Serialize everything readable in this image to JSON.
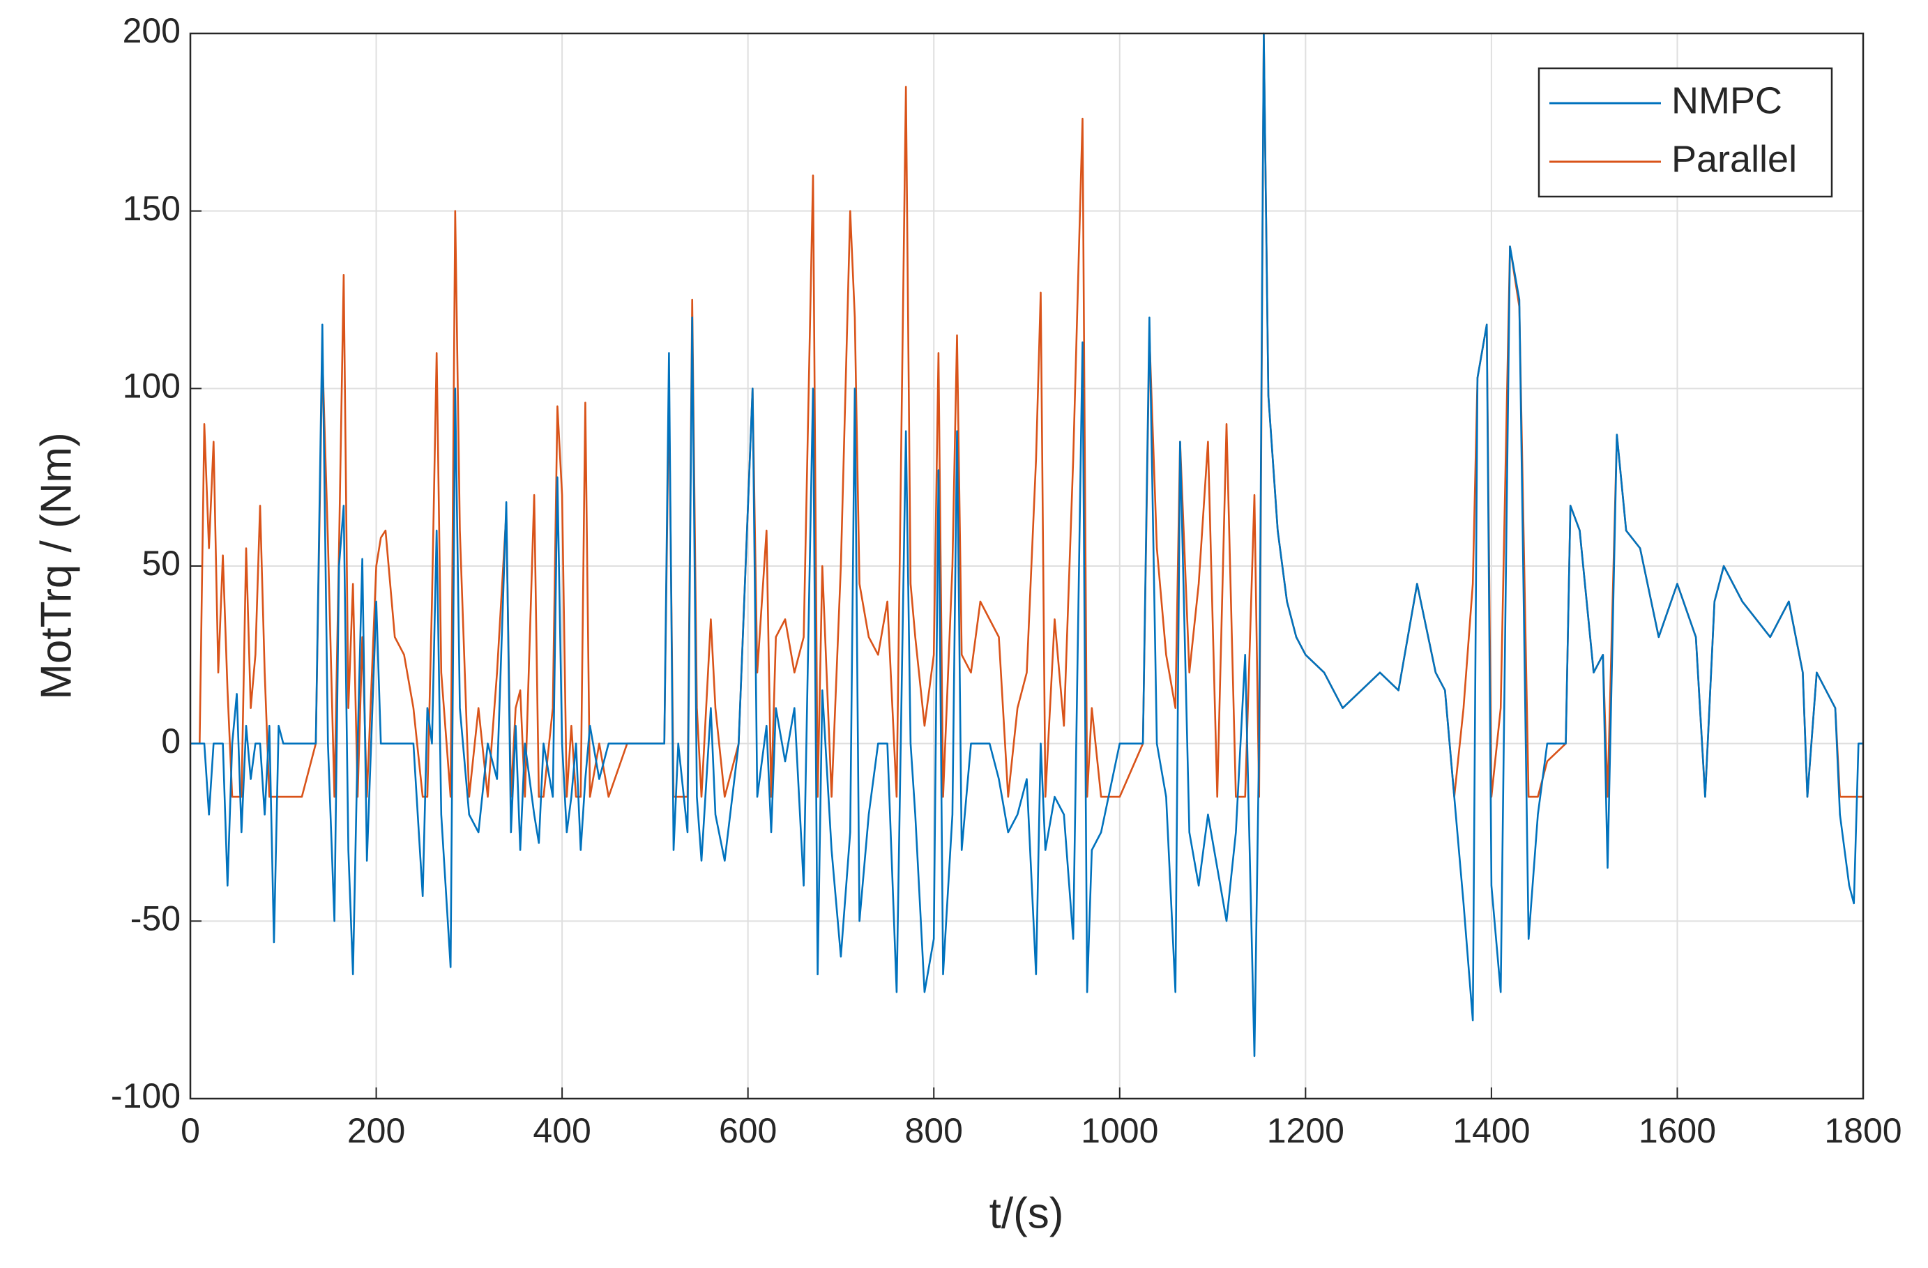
{
  "chart_data": {
    "type": "line",
    "xlabel": "t/(s)",
    "ylabel": "MotTrq / (Nm)",
    "x": [
      0,
      10,
      15,
      20,
      25,
      30,
      35,
      40,
      45,
      50,
      55,
      60,
      65,
      70,
      75,
      80,
      85,
      90,
      95,
      100,
      120,
      135,
      142,
      148,
      155,
      160,
      165,
      170,
      175,
      180,
      185,
      190,
      200,
      205,
      210,
      220,
      230,
      240,
      250,
      255,
      260,
      265,
      270,
      280,
      285,
      290,
      300,
      310,
      320,
      330,
      340,
      345,
      350,
      355,
      360,
      370,
      375,
      380,
      390,
      395,
      400,
      405,
      410,
      415,
      420,
      425,
      430,
      440,
      450,
      470,
      510,
      515,
      520,
      525,
      535,
      540,
      545,
      550,
      560,
      565,
      575,
      590,
      605,
      610,
      620,
      625,
      630,
      640,
      650,
      660,
      670,
      675,
      680,
      690,
      700,
      710,
      715,
      720,
      730,
      740,
      750,
      760,
      770,
      775,
      780,
      790,
      800,
      805,
      810,
      820,
      825,
      830,
      840,
      850,
      860,
      870,
      880,
      890,
      900,
      910,
      915,
      920,
      930,
      940,
      950,
      960,
      965,
      970,
      980,
      1000,
      1025,
      1032,
      1040,
      1050,
      1060,
      1065,
      1075,
      1085,
      1095,
      1105,
      1115,
      1125,
      1135,
      1145,
      1150,
      1155,
      1160,
      1170,
      1180,
      1190,
      1200,
      1220,
      1240,
      1260,
      1280,
      1300,
      1320,
      1340,
      1350,
      1360,
      1370,
      1380,
      1385,
      1395,
      1400,
      1410,
      1420,
      1430,
      1440,
      1450,
      1460,
      1480,
      1485,
      1495,
      1510,
      1520,
      1525,
      1535,
      1545,
      1560,
      1580,
      1600,
      1620,
      1630,
      1640,
      1650,
      1670,
      1700,
      1720,
      1735,
      1740,
      1750,
      1760,
      1770,
      1775,
      1785,
      1790,
      1795,
      1800
    ],
    "series": [
      {
        "name": "NMPC",
        "color": "#0072bd",
        "values": [
          0,
          0,
          0,
          -20,
          0,
          0,
          0,
          -40,
          0,
          14,
          -25,
          5,
          -10,
          0,
          0,
          -20,
          5,
          -56,
          5,
          0,
          0,
          0,
          118,
          0,
          -50,
          50,
          67,
          -30,
          -65,
          0,
          52,
          -33,
          40,
          0,
          0,
          0,
          0,
          0,
          -43,
          10,
          0,
          60,
          -20,
          -63,
          100,
          10,
          -20,
          -25,
          0,
          -10,
          68,
          -25,
          5,
          -30,
          0,
          -20,
          -28,
          0,
          -15,
          75,
          0,
          -25,
          -15,
          0,
          -30,
          -10,
          5,
          -10,
          0,
          0,
          0,
          110,
          -30,
          0,
          -25,
          120,
          -15,
          -33,
          10,
          -20,
          -33,
          0,
          100,
          -15,
          5,
          -25,
          10,
          -5,
          10,
          -40,
          100,
          -65,
          15,
          -30,
          -60,
          -25,
          100,
          -50,
          -20,
          0,
          0,
          -70,
          88,
          0,
          -20,
          -70,
          -55,
          77,
          -65,
          -20,
          88,
          -30,
          0,
          0,
          0,
          -10,
          -25,
          -20,
          -10,
          -65,
          0,
          -30,
          -15,
          -20,
          -55,
          113,
          -70,
          -30,
          -25,
          0,
          0,
          120,
          0,
          -15,
          -70,
          85,
          -25,
          -40,
          -20,
          -35,
          -50,
          -25,
          25,
          -88,
          0,
          200,
          98,
          60,
          40,
          30,
          25,
          20,
          10,
          15,
          20,
          15,
          45,
          20,
          15,
          -15,
          -45,
          -78,
          103,
          118,
          -40,
          -70,
          140,
          125,
          -55,
          -20,
          0,
          0,
          67,
          60,
          20,
          25,
          -35,
          87,
          60,
          55,
          30,
          45,
          30,
          -15,
          40,
          50,
          40,
          30,
          40,
          20,
          -15,
          20,
          15,
          10,
          -20,
          -40,
          -45,
          0,
          0
        ]
      },
      {
        "name": "Parallel",
        "color": "#d95319",
        "values": [
          0,
          0,
          90,
          55,
          85,
          20,
          53,
          15,
          -15,
          -15,
          -15,
          55,
          10,
          25,
          67,
          20,
          -15,
          -15,
          -15,
          -15,
          -15,
          0,
          110,
          57,
          -15,
          55,
          132,
          10,
          45,
          -15,
          30,
          -15,
          50,
          58,
          60,
          30,
          25,
          10,
          -15,
          -15,
          40,
          110,
          20,
          -15,
          150,
          60,
          -15,
          10,
          -15,
          20,
          65,
          -15,
          10,
          15,
          -15,
          70,
          -15,
          -15,
          10,
          95,
          70,
          -15,
          5,
          -15,
          -15,
          96,
          -15,
          0,
          -15,
          0,
          0,
          100,
          -15,
          -15,
          -15,
          125,
          10,
          -15,
          35,
          10,
          -15,
          0,
          100,
          20,
          60,
          -15,
          30,
          35,
          20,
          30,
          160,
          -15,
          50,
          -15,
          50,
          150,
          120,
          45,
          30,
          25,
          40,
          -15,
          185,
          45,
          30,
          5,
          25,
          110,
          -15,
          50,
          115,
          25,
          20,
          40,
          35,
          30,
          -15,
          10,
          20,
          80,
          127,
          -15,
          35,
          5,
          80,
          176,
          -15,
          10,
          -15,
          -15,
          0,
          115,
          55,
          25,
          10,
          85,
          20,
          45,
          85,
          -15,
          90,
          -15,
          -15,
          70,
          -15,
          200,
          98,
          60,
          40,
          30,
          25,
          20,
          10,
          15,
          20,
          15,
          45,
          20,
          15,
          -15,
          10,
          45,
          103,
          118,
          -15,
          10,
          140,
          123,
          -15,
          -15,
          -5,
          0,
          67,
          60,
          20,
          25,
          -15,
          87,
          60,
          55,
          30,
          45,
          30,
          -15,
          40,
          50,
          40,
          30,
          40,
          20,
          -15,
          20,
          15,
          10,
          -15,
          -15,
          -15,
          -15,
          -15
        ]
      }
    ],
    "xlim": [
      0,
      1800
    ],
    "xticks": [
      0,
      200,
      400,
      600,
      800,
      1000,
      1200,
      1400,
      1600,
      1800
    ],
    "ylim": [
      -100,
      200
    ],
    "yticks": [
      -100,
      -50,
      0,
      50,
      100,
      150,
      200
    ],
    "grid": true,
    "legend": "upper right"
  }
}
